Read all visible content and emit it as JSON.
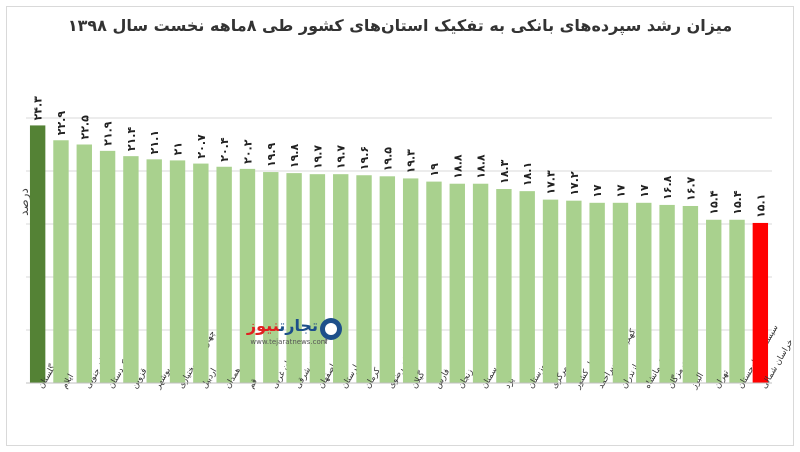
{
  "title": "میزان رشد سپرده‌های بانکی به تفکیک استان‌های کشور طی ۸ماهه نخست سال ۱۳۹۸",
  "watermark": {
    "name_part1": "تجارت",
    "name_part2": "نیوز",
    "url": "www.tejaratnews.com"
  },
  "colors": {
    "bar_default": "#a9d18e",
    "bar_highest": "#548235",
    "bar_lowest": "#ff0000",
    "grid": "#d9d9d9"
  },
  "chart_data": {
    "type": "bar",
    "ylabel": "درصد",
    "xlabel": "",
    "ylim": [
      0,
      25
    ],
    "grid": true,
    "categories": [
      "گلستان",
      "ایلام",
      "خراسان جنوبی",
      "کردستان",
      "قزوین",
      "بوشهر",
      "چهارمحال‌وبختیاری",
      "اردبیل",
      "همدان",
      "قم",
      "آذربایجان غربی",
      "آذربایجان شرقی",
      "اصفهان",
      "لرستان",
      "کرمان",
      "خراسان رضوی",
      "گیلان",
      "فارس",
      "زنجان",
      "سمنان",
      "یزد",
      "خوزستان",
      "مرکزی",
      "کل کشور",
      "کهگیلویه وبویراحمد",
      "مازندران",
      "کرمانشاه",
      "هرمزگان",
      "البرز",
      "تهران",
      "سیستان و بلوچستان",
      "خراسان شمالی"
    ],
    "values": [
      24.3,
      22.9,
      22.5,
      21.9,
      21.4,
      21.1,
      21,
      20.7,
      20.4,
      20.2,
      19.9,
      19.8,
      19.7,
      19.7,
      19.6,
      19.5,
      19.3,
      19,
      18.8,
      18.8,
      18.3,
      18.1,
      17.3,
      17.2,
      17,
      17,
      17,
      16.8,
      16.7,
      15.4,
      15.4,
      15.1
    ],
    "value_labels": [
      "۲۴.۳",
      "۲۲.۹",
      "۲۲.۵",
      "۲۱.۹",
      "۲۱.۴",
      "۲۱.۱",
      "۲۱",
      "۲۰.۷",
      "۲۰.۴",
      "۲۰.۲",
      "۱۹.۹",
      "۱۹.۸",
      "۱۹.۷",
      "۱۹.۷",
      "۱۹.۶",
      "۱۹.۵",
      "۱۹.۳",
      "۱۹",
      "۱۸.۸",
      "۱۸.۸",
      "۱۸.۳",
      "۱۸.۱",
      "۱۷.۳",
      "۱۷.۲",
      "۱۷",
      "۱۷",
      "۱۷",
      "۱۶.۸",
      "۱۶.۷",
      "۱۵.۴",
      "۱۵.۴",
      "۱۵.۱"
    ]
  }
}
